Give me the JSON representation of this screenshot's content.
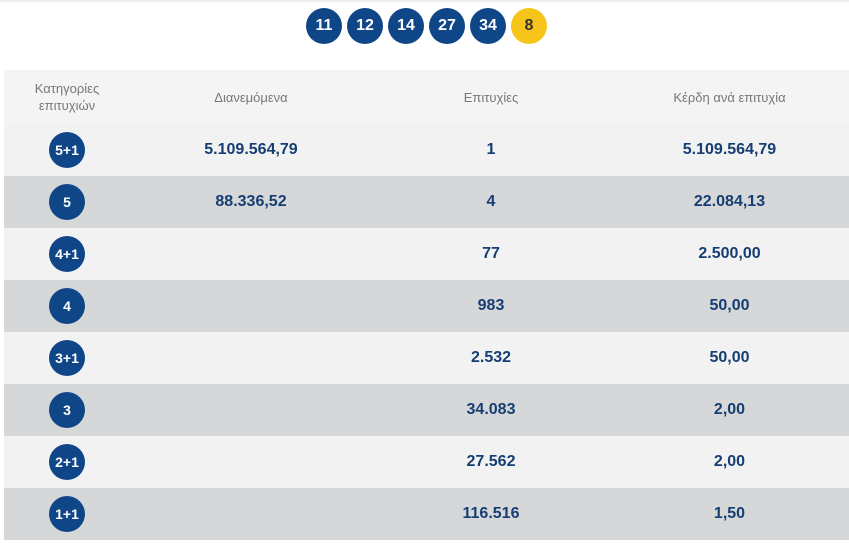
{
  "numbers": [
    "11",
    "12",
    "14",
    "27",
    "34"
  ],
  "bonus": "8",
  "headers": {
    "category": "Κατηγορίες επιτυχιών",
    "distributed": "Διανεμόμενα",
    "winners": "Επιτυχίες",
    "prize": "Κέρδη ανά επιτυχία"
  },
  "rows": [
    {
      "category": "5+1",
      "distributed": "5.109.564,79",
      "winners": "1",
      "prize": "5.109.564,79"
    },
    {
      "category": "5",
      "distributed": "88.336,52",
      "winners": "4",
      "prize": "22.084,13"
    },
    {
      "category": "4+1",
      "distributed": "",
      "winners": "77",
      "prize": "2.500,00"
    },
    {
      "category": "4",
      "distributed": "",
      "winners": "983",
      "prize": "50,00"
    },
    {
      "category": "3+1",
      "distributed": "",
      "winners": "2.532",
      "prize": "50,00"
    },
    {
      "category": "3",
      "distributed": "",
      "winners": "34.083",
      "prize": "2,00"
    },
    {
      "category": "2+1",
      "distributed": "",
      "winners": "27.562",
      "prize": "2,00"
    },
    {
      "category": "1+1",
      "distributed": "",
      "winners": "116.516",
      "prize": "1,50"
    }
  ]
}
